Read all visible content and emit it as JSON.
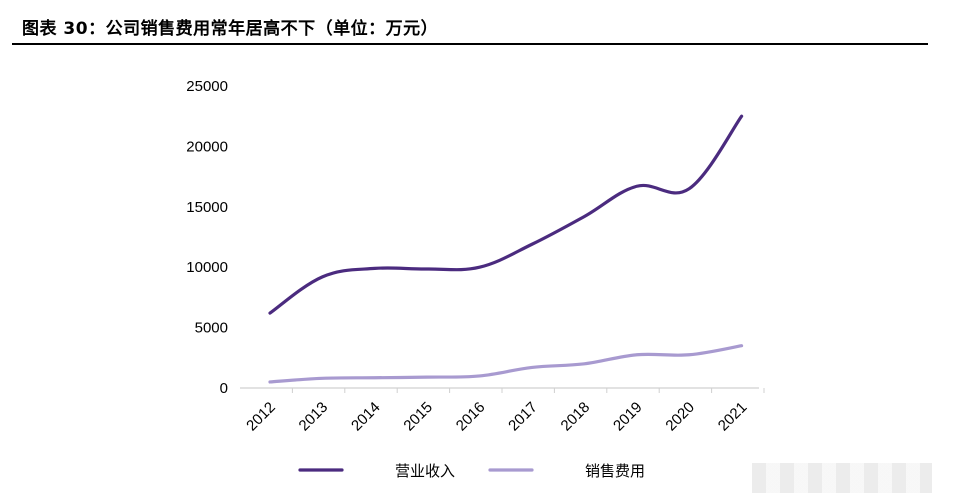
{
  "figure_title": "图表 30：公司销售费用常年居高不下（单位：万元）",
  "chart_data": {
    "type": "line",
    "title": "图表 30：公司销售费用常年居高不下（单位：万元）",
    "xlabel": "",
    "ylabel": "",
    "categories": [
      "2012",
      "2013",
      "2014",
      "2015",
      "2016",
      "2017",
      "2018",
      "2019",
      "2020",
      "2021"
    ],
    "ylim": [
      0,
      25000
    ],
    "yticks": [
      0,
      5000,
      10000,
      15000,
      20000,
      25000
    ],
    "grid": false,
    "legend_position": "bottom",
    "series": [
      {
        "name": "营业收入",
        "color": "#4b2b7f",
        "values": [
          6200,
          9200,
          9900,
          9850,
          10000,
          11900,
          14200,
          16700,
          16500,
          22500
        ]
      },
      {
        "name": "销售费用",
        "color": "#a89ad0",
        "values": [
          500,
          800,
          850,
          900,
          1000,
          1700,
          2000,
          2750,
          2750,
          3500
        ]
      }
    ]
  }
}
